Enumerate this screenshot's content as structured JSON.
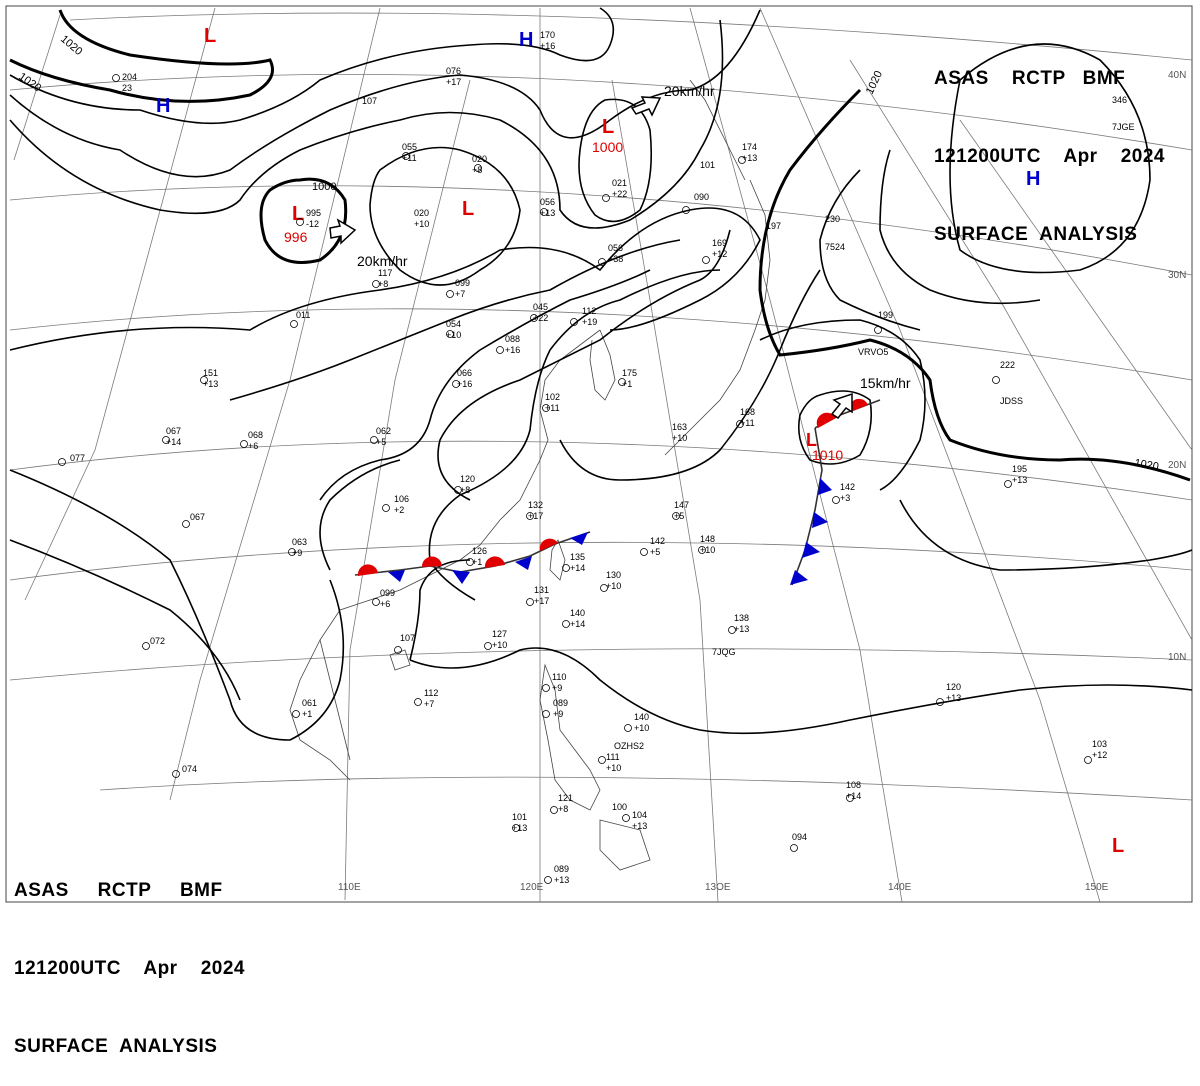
{
  "header": {
    "line1": "ASAS    RCTP   BMF",
    "line2": "121200UTC    Apr    2024",
    "line3": "SURFACE  ANALYSIS"
  },
  "footer": {
    "line1": "ASAS     RCTP     BMF",
    "line2": "121200UTC    Apr    2024",
    "line3": "SURFACE  ANALYSIS"
  },
  "colors": {
    "low": "#e00000",
    "high": "#0000cc",
    "warm_front": "#e00000",
    "cold_front": "#0000cc",
    "isobar": "#000000",
    "grid": "#7a7a7a"
  },
  "longitude_labels": [
    "110E",
    "120E",
    "13OE",
    "140E",
    "150E"
  ],
  "latitude_labels": [
    "40N",
    "30N",
    "20N",
    "10N"
  ],
  "isobar_labels": [
    "1020",
    "1020",
    "1000",
    "1020",
    "1020"
  ],
  "pressure_systems": [
    {
      "type": "low",
      "symbol": "L",
      "value": ""
    },
    {
      "type": "high",
      "symbol": "H",
      "value": ""
    },
    {
      "type": "high",
      "symbol": "H",
      "value": ""
    },
    {
      "type": "low",
      "symbol": "L",
      "value": "996"
    },
    {
      "type": "low",
      "symbol": "L",
      "value": ""
    },
    {
      "type": "low",
      "symbol": "L",
      "value": "1000"
    },
    {
      "type": "high",
      "symbol": "H",
      "value": ""
    },
    {
      "type": "low",
      "symbol": "L",
      "value": "1010"
    },
    {
      "type": "low",
      "symbol": "L",
      "value": ""
    }
  ],
  "motion_arrows": [
    {
      "text": "20km/hr"
    },
    {
      "text": "20km/hr"
    },
    {
      "text": "15km/hr"
    }
  ],
  "stations": [
    {
      "text": "204"
    },
    {
      "text": "23"
    },
    {
      "text": "107"
    },
    {
      "text": "076"
    },
    {
      "text": "+17"
    },
    {
      "text": "170"
    },
    {
      "text": "+16"
    },
    {
      "text": "055"
    },
    {
      "text": "+11"
    },
    {
      "text": "020"
    },
    {
      "text": "+10"
    },
    {
      "text": "995"
    },
    {
      "text": "-12"
    },
    {
      "text": "020"
    },
    {
      "text": "+8"
    },
    {
      "text": "056"
    },
    {
      "text": "+13"
    },
    {
      "text": "021"
    },
    {
      "text": "+22"
    },
    {
      "text": "090"
    },
    {
      "text": "101"
    },
    {
      "text": "174"
    },
    {
      "text": "+13"
    },
    {
      "text": "117"
    },
    {
      "text": "+8"
    },
    {
      "text": "099"
    },
    {
      "text": "+7"
    },
    {
      "text": "056"
    },
    {
      "text": "+38"
    },
    {
      "text": "169"
    },
    {
      "text": "+12"
    },
    {
      "text": "197"
    },
    {
      "text": "230"
    },
    {
      "text": "7524"
    },
    {
      "text": "346"
    },
    {
      "text": "7JGE"
    },
    {
      "text": "011"
    },
    {
      "text": "054"
    },
    {
      "text": "+10"
    },
    {
      "text": "045"
    },
    {
      "text": "+22"
    },
    {
      "text": "112"
    },
    {
      "text": "+19"
    },
    {
      "text": "088"
    },
    {
      "text": "+16"
    },
    {
      "text": "199"
    },
    {
      "text": "VRVO5"
    },
    {
      "text": "151"
    },
    {
      "text": "+13"
    },
    {
      "text": "066"
    },
    {
      "text": "+16"
    },
    {
      "text": "175"
    },
    {
      "text": "+1"
    },
    {
      "text": "222"
    },
    {
      "text": "JDSS"
    },
    {
      "text": "102"
    },
    {
      "text": "+11"
    },
    {
      "text": "067"
    },
    {
      "text": "+14"
    },
    {
      "text": "068"
    },
    {
      "text": "+6"
    },
    {
      "text": "062"
    },
    {
      "text": "+5"
    },
    {
      "text": "163"
    },
    {
      "text": "+10"
    },
    {
      "text": "168"
    },
    {
      "text": "+11"
    },
    {
      "text": "195"
    },
    {
      "text": "+13"
    },
    {
      "text": "077"
    },
    {
      "text": "067"
    },
    {
      "text": "120"
    },
    {
      "text": "+8"
    },
    {
      "text": "147"
    },
    {
      "text": "+5"
    },
    {
      "text": "142"
    },
    {
      "text": "+3"
    },
    {
      "text": "106"
    },
    {
      "text": "+2"
    },
    {
      "text": "132"
    },
    {
      "text": "+17"
    },
    {
      "text": "063"
    },
    {
      "text": "+9"
    },
    {
      "text": "126"
    },
    {
      "text": "+1"
    },
    {
      "text": "142"
    },
    {
      "text": "+5"
    },
    {
      "text": "148"
    },
    {
      "text": "+10"
    },
    {
      "text": "135"
    },
    {
      "text": "+14"
    },
    {
      "text": "130"
    },
    {
      "text": "+10"
    },
    {
      "text": "099"
    },
    {
      "text": "+6"
    },
    {
      "text": "131"
    },
    {
      "text": "+17"
    },
    {
      "text": "140"
    },
    {
      "text": "+14"
    },
    {
      "text": "138"
    },
    {
      "text": "+13"
    },
    {
      "text": "7JQG"
    },
    {
      "text": "072"
    },
    {
      "text": "107"
    },
    {
      "text": "127"
    },
    {
      "text": "+10"
    },
    {
      "text": "110"
    },
    {
      "text": "+9"
    },
    {
      "text": "112"
    },
    {
      "text": "+7"
    },
    {
      "text": "089"
    },
    {
      "text": "+9"
    },
    {
      "text": "061"
    },
    {
      "text": "+1"
    },
    {
      "text": "140"
    },
    {
      "text": "+10"
    },
    {
      "text": "120"
    },
    {
      "text": "+13"
    },
    {
      "text": "OZHS2"
    },
    {
      "text": "111"
    },
    {
      "text": "+10"
    },
    {
      "text": "103"
    },
    {
      "text": "+12"
    },
    {
      "text": "074"
    },
    {
      "text": "108"
    },
    {
      "text": "+14"
    },
    {
      "text": "121"
    },
    {
      "text": "+8"
    },
    {
      "text": "100"
    },
    {
      "text": "104"
    },
    {
      "text": "+13"
    },
    {
      "text": "101"
    },
    {
      "text": "+13"
    },
    {
      "text": "094"
    },
    {
      "text": "089"
    },
    {
      "text": "+13"
    }
  ]
}
